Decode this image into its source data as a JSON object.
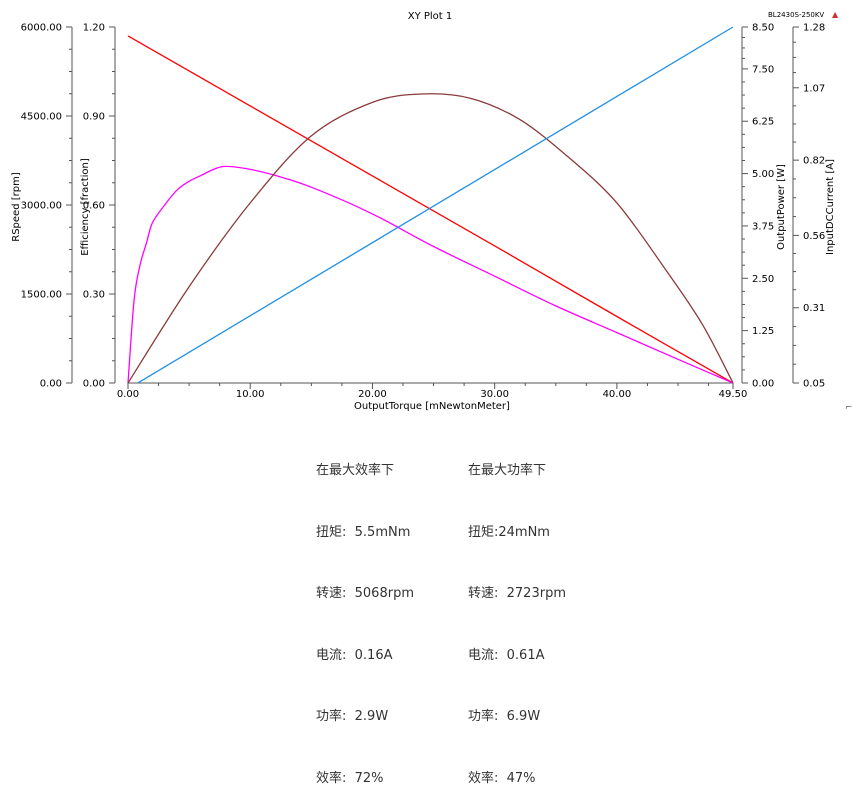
{
  "chart_data": {
    "type": "line",
    "title": "XY Plot 1",
    "legend_label": "BL2430S-250KV",
    "xlabel": "OutputTorque [mNewtonMeter]",
    "xlim": [
      0,
      49.5
    ],
    "x_ticks": [
      "0.00",
      "10.00",
      "20.00",
      "30.00",
      "40.00",
      "49.50"
    ],
    "axes": [
      {
        "name": "RSpeed",
        "label": "RSpeed [rpm]",
        "lim": [
          0,
          6000
        ],
        "ticks": [
          "0.00",
          "1500.00",
          "3000.00",
          "4500.00",
          "6000.00"
        ]
      },
      {
        "name": "Efficiency",
        "label": "Efficiency [fraction]",
        "lim": [
          0,
          1.2
        ],
        "ticks": [
          "0.00",
          "0.30",
          "0.60",
          "0.90",
          "1.20"
        ]
      },
      {
        "name": "OutputPower",
        "label": "OutputPower [W]",
        "lim": [
          0,
          8.5
        ],
        "ticks": [
          "0.00",
          "1.25",
          "2.50",
          "3.75",
          "5.00",
          "6.25",
          "7.50",
          "8.50"
        ]
      },
      {
        "name": "InputDCCurrent",
        "label": "InputDCCurrent [A]",
        "lim": [
          0.05,
          1.28
        ],
        "ticks": [
          "0.05",
          "0.31",
          "0.56",
          "0.82",
          "1.07",
          "1.28"
        ]
      }
    ],
    "series": [
      {
        "axis": "RSpeed",
        "color": "#ff0000",
        "x": [
          0,
          10,
          20,
          30,
          40,
          49.5
        ],
        "y": [
          5850,
          4670,
          3490,
          2310,
          1120,
          0
        ]
      },
      {
        "axis": "Efficiency",
        "color": "#ff00ff",
        "x": [
          0,
          0.5,
          1,
          1.5,
          2,
          3,
          4,
          5,
          6,
          7,
          8,
          10,
          12,
          15,
          20,
          25,
          30,
          35,
          40,
          45,
          49.5
        ],
        "y": [
          0,
          0.28,
          0.4,
          0.47,
          0.54,
          0.6,
          0.65,
          0.68,
          0.7,
          0.72,
          0.73,
          0.72,
          0.7,
          0.66,
          0.57,
          0.46,
          0.36,
          0.26,
          0.17,
          0.08,
          0
        ]
      },
      {
        "axis": "OutputPower",
        "color": "#8b3a3a",
        "x": [
          0,
          5,
          10,
          15,
          20,
          24,
          28,
          32,
          36,
          40,
          44,
          47,
          49.5
        ],
        "y": [
          0,
          2.3,
          4.3,
          5.9,
          6.7,
          6.9,
          6.8,
          6.3,
          5.4,
          4.3,
          2.7,
          1.4,
          0
        ]
      },
      {
        "axis": "InputDCCurrent",
        "color": "#1e8fe6",
        "x": [
          0.8,
          49.5
        ],
        "y": [
          0.05,
          1.28
        ]
      }
    ]
  },
  "annotations": {
    "left": [
      "在最大效率下",
      "扭矩:  5.5mNm",
      "转速:  5068rpm",
      "电流:  0.16A",
      "功率:  2.9W",
      "效率:  72%"
    ],
    "right": [
      "在最大功率下",
      "扭矩:24mNm",
      "转速:  2723rpm",
      "电流:  0.61A",
      "功率:  6.9W",
      "效率:  47%"
    ]
  },
  "marker_glyph": "▲",
  "corner_glyph": "⌐"
}
